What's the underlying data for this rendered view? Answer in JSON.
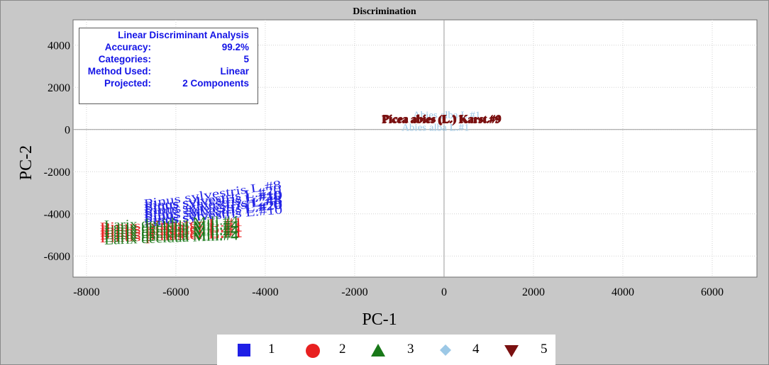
{
  "chart_data": {
    "type": "scatter",
    "title": "Discrimination",
    "xlabel": "PC-1",
    "ylabel": "PC-2",
    "xlim": [
      -8300,
      7000
    ],
    "ylim": [
      -7000,
      5200
    ],
    "xticks": [
      -8000,
      -6000,
      -4000,
      -2000,
      0,
      2000,
      4000,
      6000
    ],
    "yticks": [
      4000,
      2000,
      0,
      -2000,
      -4000,
      -6000
    ],
    "xtick_labels": [
      "-8000",
      "-6000",
      "-4000",
      "-2000",
      "0",
      "2000",
      "4000",
      "6000"
    ],
    "ytick_labels": [
      "4000",
      "2000",
      "0",
      "-2000",
      "-4000",
      "-6000"
    ],
    "grid": true,
    "legend_position": "bottom",
    "info_box": {
      "heading": "Linear Discriminant Analysis",
      "rows": [
        {
          "label": "Accuracy:",
          "value": "99.2%"
        },
        {
          "label": "Categories:",
          "value": "5"
        },
        {
          "label": "Method Used:",
          "value": "Linear"
        },
        {
          "label": "Projected:",
          "value": "2 Components"
        }
      ]
    },
    "series": [
      {
        "name": "1",
        "color": "#1f1fe6",
        "marker": "square",
        "cluster": {
          "x": [
            -6700,
            -3600
          ],
          "y": [
            -4450,
            -3500
          ]
        },
        "labels": [
          {
            "text": "Pinus sylvestris L.#8",
            "x": -6600,
            "y": -4300
          },
          {
            "text": "Pinus sylvestris L.#10",
            "x": -6000,
            "y": -3800
          },
          {
            "text": "Pinus sylvestris L.#20",
            "x": -4500,
            "y": -3600
          }
        ]
      },
      {
        "name": "2",
        "color": "#e82020",
        "marker": "circle",
        "cluster": {
          "x": [
            -7700,
            -4500
          ],
          "y": [
            -5150,
            -4600
          ]
        },
        "labels": [
          {
            "text": "Pinus pinaster L.#1",
            "x": -7700,
            "y": -5000
          },
          {
            "text": "Pinus pinaster L.#1",
            "x": -7200,
            "y": -4650
          },
          {
            "text": "Pinus pinaster L.#1",
            "x": -5500,
            "y": -4750
          }
        ]
      },
      {
        "name": "3",
        "color": "#187818",
        "marker": "triangle",
        "cluster": {
          "x": [
            -7600,
            -4600
          ],
          "y": [
            -5250,
            -4500
          ]
        },
        "labels": [
          {
            "text": "Larix decidua Mill.#4",
            "x": -7500,
            "y": -5050
          },
          {
            "text": "Larix decidua Mill.#4",
            "x": -6800,
            "y": -4800
          }
        ]
      },
      {
        "name": "4",
        "color": "#9cc8e6",
        "marker": "diamond",
        "cluster": {
          "x": [
            -1000,
            1000
          ],
          "y": [
            0,
            800
          ]
        },
        "labels": [
          {
            "text": "Abies alba L.#1",
            "x": -950,
            "y": 0
          },
          {
            "text": "Abies alba L.#1",
            "x": -700,
            "y": 600
          }
        ]
      },
      {
        "name": "5",
        "color": "#7a1010",
        "marker": "triangle-down",
        "cluster": {
          "x": [
            -1400,
            1200
          ],
          "y": [
            300,
            700
          ]
        },
        "labels": [
          {
            "text": "Picea abies (L.) Karst.#9",
            "x": -1400,
            "y": 300
          }
        ]
      }
    ]
  }
}
